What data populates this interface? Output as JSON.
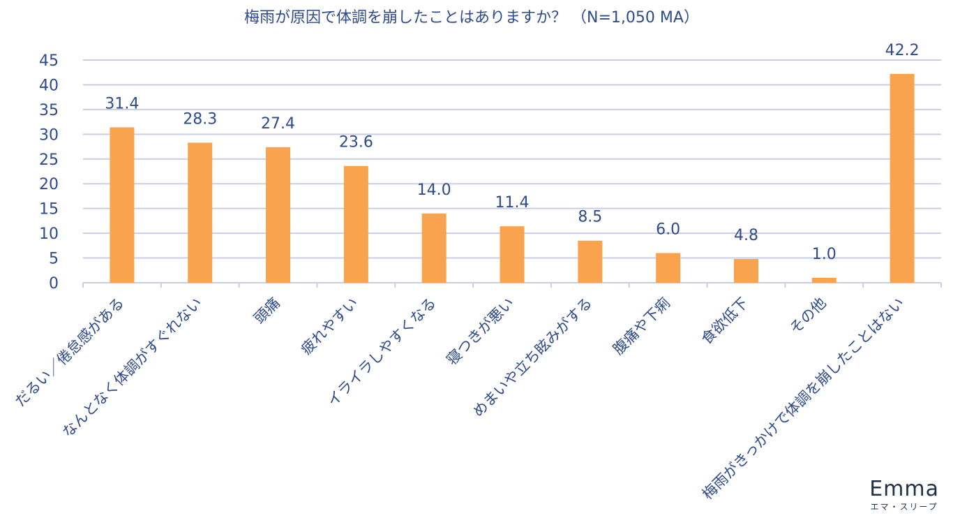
{
  "chart_data": {
    "type": "bar",
    "title": "梅雨が原因で体調を崩したことはありますか？ （N=1,050 MA）",
    "categories": [
      "だるい／倦怠感がある",
      "なんとなく体調がすぐれない",
      "頭痛",
      "疲れやすい",
      "イライラしやすくなる",
      "寝つきが悪い",
      "めまいや立ち眩みがする",
      "腹痛や下痢",
      "食欲低下",
      "その他",
      "梅雨がきっかけで体調を崩したことはない"
    ],
    "values": [
      31.4,
      28.3,
      27.4,
      23.6,
      14.0,
      11.4,
      8.5,
      6.0,
      4.8,
      1.0,
      42.2
    ],
    "data_labels": [
      "31.4",
      "28.3",
      "27.4",
      "23.6",
      "14.0",
      "11.4",
      "8.5",
      "6.0",
      "4.8",
      "1.0",
      "42.2"
    ],
    "yticks": [
      "0",
      "5",
      "10",
      "15",
      "20",
      "25",
      "30",
      "35",
      "40",
      "45"
    ],
    "ylim": [
      0,
      45
    ],
    "grid": true,
    "legend": "none",
    "bar_color": "#f9a34f",
    "text_color": "#2f4a8a",
    "grid_color": "#c9cde3"
  },
  "logo": {
    "name": "Emma",
    "sub": "エマ・スリープ"
  }
}
